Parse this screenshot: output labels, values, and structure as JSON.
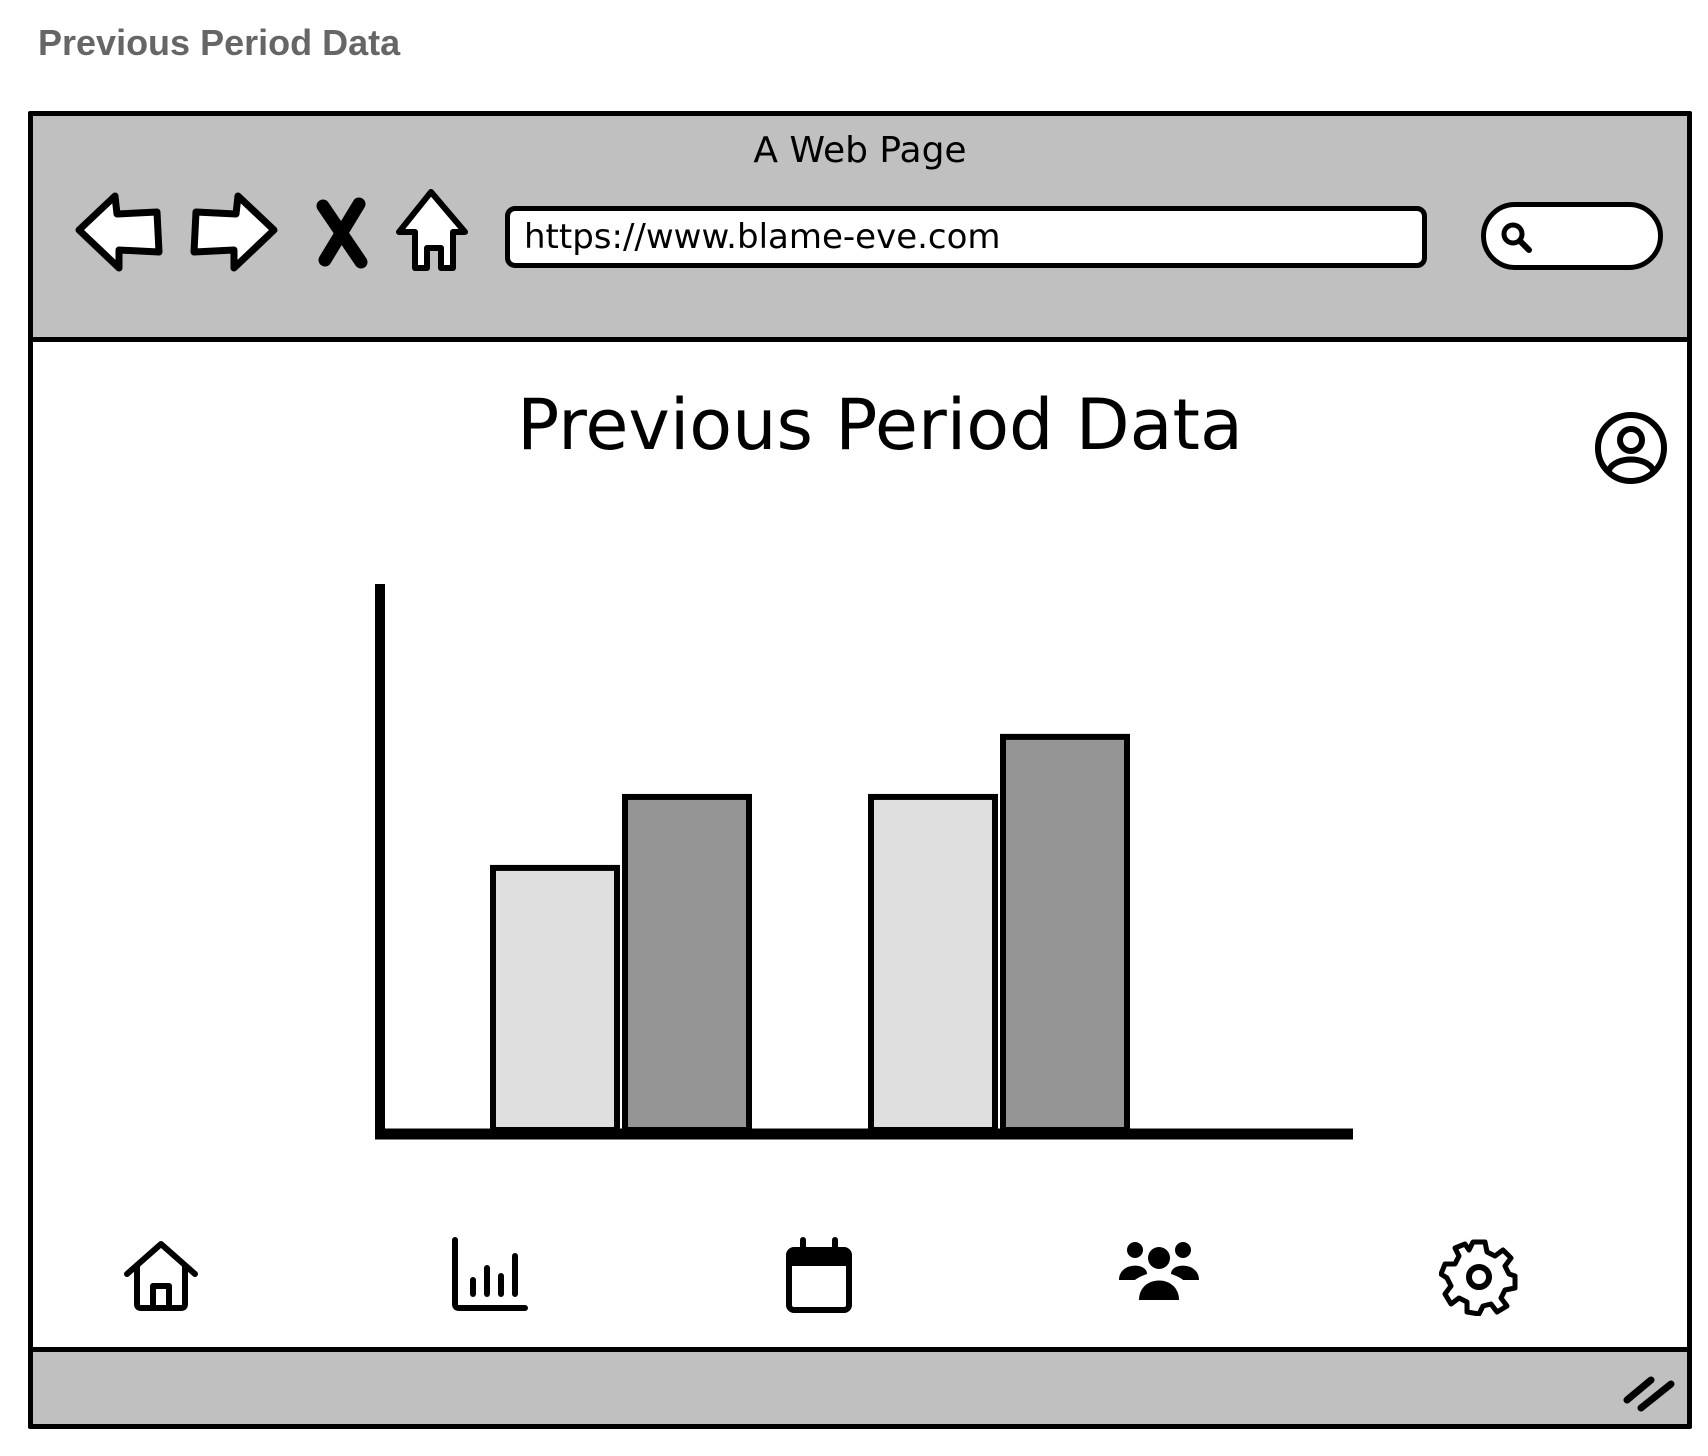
{
  "caption": "Previous Period Data",
  "browser": {
    "title": "A Web Page",
    "url": "https://www.blame-eve.com",
    "icons": [
      "back-arrow-icon",
      "forward-arrow-icon",
      "close-icon",
      "home-icon",
      "search-icon"
    ]
  },
  "page": {
    "title": "Previous Period Data",
    "profile_icon": "user-circle-icon"
  },
  "chart_data": {
    "type": "bar",
    "categories": [
      "",
      ""
    ],
    "series": [
      {
        "values": [
          48,
          61
        ],
        "color": "#dfdfdf"
      },
      {
        "values": [
          61,
          72
        ],
        "color": "#959595"
      }
    ],
    "title": "",
    "xlabel": "",
    "ylabel": "",
    "ylim": [
      0,
      100
    ],
    "grid": false,
    "legend": "none"
  },
  "bottom_nav": [
    {
      "icon": "home-icon"
    },
    {
      "icon": "bar-chart-icon"
    },
    {
      "icon": "calendar-icon"
    },
    {
      "icon": "users-icon"
    },
    {
      "icon": "gear-icon"
    }
  ],
  "colors": {
    "chrome": "#c0c0c0",
    "caption": "#666666",
    "stroke": "#000000"
  }
}
